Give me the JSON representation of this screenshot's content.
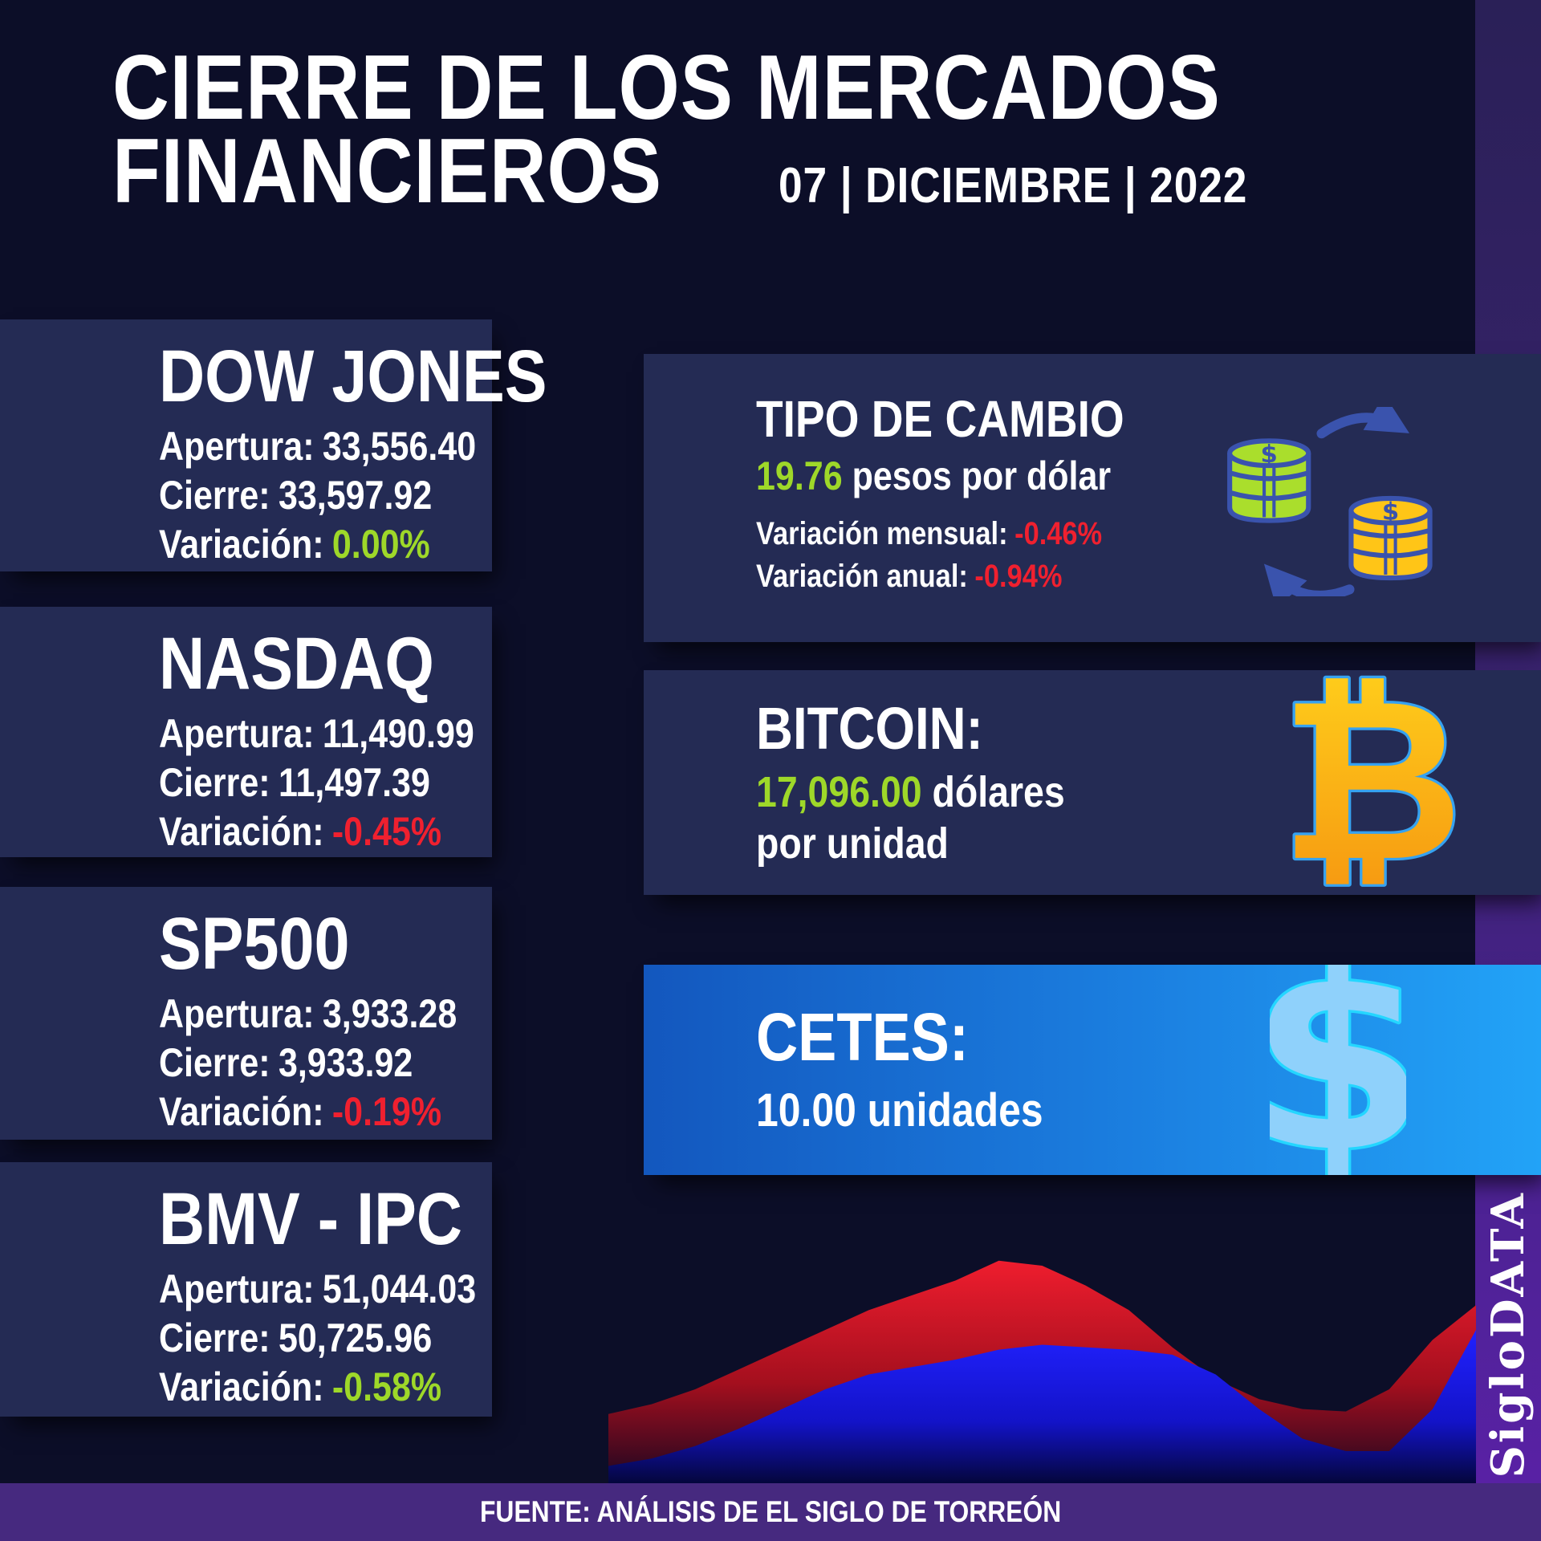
{
  "title": {
    "line1": "CIERRE DE LOS MERCADOS",
    "line2": "FINANCIEROS",
    "date": "07 | DICIEMBRE | 2022"
  },
  "labels": {
    "apertura": "Apertura:",
    "cierre": "Cierre:",
    "variacion": "Variación:"
  },
  "markets": [
    {
      "name": "DOW JONES",
      "apertura": "33,556.40",
      "cierre": "33,597.92",
      "variacion": "0.00%",
      "variacion_color": "#9ed829"
    },
    {
      "name": "NASDAQ",
      "apertura": "11,490.99",
      "cierre": "11,497.39",
      "variacion": "-0.45%",
      "variacion_color": "#f0202f"
    },
    {
      "name": "SP500",
      "apertura": "3,933.28",
      "cierre": "3,933.92",
      "variacion": "-0.19%",
      "variacion_color": "#f0202f"
    },
    {
      "name": "BMV - IPC",
      "apertura": "51,044.03",
      "cierre": "50,725.96",
      "variacion": "-0.58%",
      "variacion_color": "#9ed829"
    }
  ],
  "exchange": {
    "title": "TIPO DE CAMBIO",
    "rate": "19.76",
    "rate_unit": "pesos por dólar",
    "monthly_label": "Variación mensual:",
    "monthly": "-0.46%",
    "annual_label": "Variación anual:",
    "annual": "-0.94%",
    "icon": "coins-exchange-icon"
  },
  "bitcoin": {
    "title": "BITCOIN:",
    "price": "17,096.00",
    "unit_line1": "dólares",
    "unit_line2": "por unidad",
    "symbol": "₿",
    "icon": "bitcoin-icon"
  },
  "cetes": {
    "title": "CETES:",
    "value": "10.00 unidades",
    "symbol": "$",
    "icon": "dollar-sign-icon"
  },
  "brand": {
    "name": "SigloDATA"
  },
  "footer": {
    "source": "FUENTE: ANÁLISIS DE EL SIGLO DE TORREÓN"
  },
  "colors": {
    "page_bg": "#0c0e28",
    "card_navy": "#242b54",
    "accent_green": "#9ed829",
    "accent_red": "#f0202f",
    "rate_green": "#9ed829",
    "band_purple_top": "#2a2057",
    "band_purple_bottom": "#5b21a8",
    "footer_purple": "#46297f",
    "cetes_blue_left": "#1357be",
    "cetes_blue_right": "#22a3f7",
    "coin_green": "#aade2c",
    "coin_gold": "#ffc517",
    "coin_outline": "#3a53ad",
    "btc_gold_top": "#ffd21c",
    "btc_gold_bottom": "#f69510",
    "btc_outline": "#36a2f0",
    "usd_fill": "#8fd1fb",
    "usd_outline": "#24d6ff"
  },
  "chart_data": {
    "type": "area",
    "title": "",
    "xlabel": "",
    "ylabel": "",
    "grid": false,
    "legend": false,
    "note": "decorative market-trend area chart without axes; values are % of chart height at evenly spaced x",
    "x_percent": [
      0,
      5,
      10,
      15,
      20,
      25,
      30,
      35,
      40,
      45,
      50,
      55,
      60,
      65,
      70,
      75,
      80,
      85,
      90,
      95,
      100
    ],
    "series": [
      {
        "name": "red-area",
        "color_top": "#ef1d2e",
        "color_mid": "#a40f1e",
        "color_bottom": "#1c0620",
        "values_percent": [
          28,
          32,
          38,
          46,
          54,
          62,
          70,
          76,
          82,
          90,
          88,
          80,
          70,
          55,
          42,
          34,
          30,
          29,
          38,
          58,
          72
        ]
      },
      {
        "name": "blue-area",
        "color_top": "#2121ff",
        "color_mid": "#1313c8",
        "color_bottom": "#04063c",
        "values_percent": [
          7,
          10,
          15,
          22,
          30,
          38,
          44,
          47,
          50,
          54,
          56,
          55,
          54,
          52,
          44,
          30,
          18,
          13,
          13,
          30,
          62
        ]
      }
    ]
  }
}
